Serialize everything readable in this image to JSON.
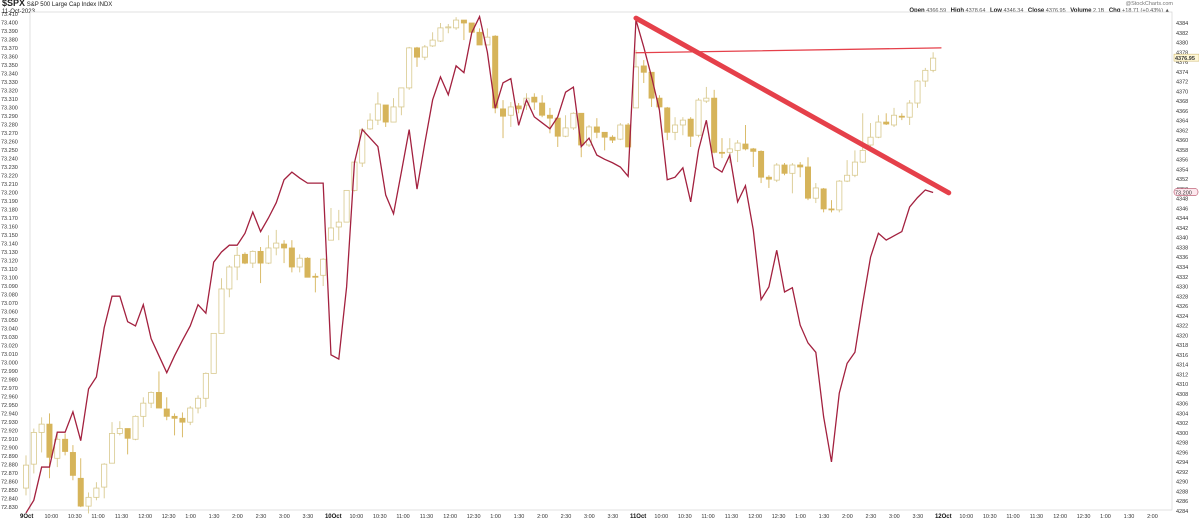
{
  "header": {
    "symbol": "$SPX",
    "name": "S&P 500 Large Cap Index",
    "exchange": "INDX",
    "date": "11-Oct-2023",
    "watermark": "@StockCharts.com",
    "ohlc": [
      {
        "label": "Open",
        "value": "4366.59"
      },
      {
        "label": "High",
        "value": "4378.64"
      },
      {
        "label": "Low",
        "value": "4346.34"
      },
      {
        "label": "Close",
        "value": "4376.95"
      },
      {
        "label": "Volume",
        "value": "2.1B"
      },
      {
        "label": "Chg",
        "value": "+18.71 (+0.43%) ▲"
      }
    ]
  },
  "chart_data": {
    "type": "candlestick",
    "interval": "10 minutes",
    "colors": {
      "down_fill": "#d6b45a",
      "up_stroke": "#d8c98e",
      "overlay_line": "#a3213f",
      "trendline": "#e5404a"
    },
    "x_axis": {
      "days": [
        "9Oct",
        "10Oct",
        "11Oct",
        "12Oct"
      ],
      "times": [
        "10:00",
        "10:30",
        "11:00",
        "11:30",
        "12:00",
        "12:30",
        "1:00",
        "1:30",
        "2:00",
        "2:30",
        "3:00",
        "3:30"
      ],
      "last_day_times": [
        "10:00",
        "10:30",
        "11:00",
        "11:30",
        "12:00",
        "12:30",
        "1:00",
        "1:30",
        "2:00"
      ]
    },
    "right_axis": {
      "min": 4284,
      "max": 4384,
      "step": 2,
      "last_value_tag": "4376.95"
    },
    "left_axis": {
      "min": 72.83,
      "max": 73.41,
      "step": 0.01,
      "last_value_tag": "73.200"
    },
    "grid": false,
    "candles_ohlc": [
      [
        [
          4288.7,
          4295.4,
          4287.2,
          4293.4
        ],
        [
          4293.6,
          4300.9,
          4291.7,
          4300.1
        ],
        [
          4300.1,
          4303.2,
          4296.0,
          4301.8
        ],
        [
          4301.8,
          4304.0,
          4290.7,
          4295.0
        ],
        [
          4294.8,
          4299.9,
          4293.0,
          4298.7
        ],
        [
          4298.7,
          4299.9,
          4295.4,
          4296.2
        ],
        [
          4296.0,
          4297.5,
          4290.3,
          4291.3
        ],
        [
          4290.7,
          4294.8,
          4284.8,
          4285.0
        ],
        [
          4285.0,
          4287.8,
          4283.5,
          4286.8
        ],
        [
          4286.8,
          4289.9,
          4286.2,
          4288.7
        ],
        [
          4288.9,
          4293.8,
          4286.6,
          4293.6
        ],
        [
          4293.8,
          4302.2,
          4293.8,
          4299.9
        ],
        [
          4299.9,
          4302.4,
          4299.5,
          4300.9
        ],
        [
          4300.9,
          4300.9,
          4295.6,
          4298.9
        ],
        [
          4298.7,
          4303.6,
          4298.5,
          4303.4
        ],
        [
          4303.4,
          4307.3,
          4301.2,
          4306.1
        ],
        [
          4306.1,
          4308.5,
          4305.1,
          4308.3
        ],
        [
          4308.3,
          4312.6,
          4305.1,
          4305.1
        ],
        [
          4304.9,
          4307.3,
          4302.6,
          4303.4
        ],
        [
          4303.4,
          4304.0,
          4299.5,
          4303.0
        ],
        [
          4303.0,
          4304.2,
          4299.1,
          4302.2
        ],
        [
          4302.2,
          4305.5,
          4301.6,
          4305.1
        ],
        [
          4305.1,
          4307.7,
          4304.0,
          4307.1
        ],
        [
          4307.1,
          4312.4,
          4305.3,
          4312.2
        ],
        [
          4312.2,
          4320.4,
          4312.2,
          4320.4
        ],
        [
          4320.4,
          4331.7,
          4320.4,
          4329.5
        ],
        [
          4329.5,
          4334.4,
          4327.8,
          4334.0
        ],
        [
          4334.0,
          4338.1,
          4331.3,
          4336.4
        ],
        [
          4336.6,
          4337.0,
          4334.6,
          4334.8
        ],
        [
          4334.8,
          4337.4,
          4333.8,
          4337.2
        ],
        [
          4337.2,
          4338.1,
          4330.7,
          4334.8
        ],
        [
          4334.8,
          4340.5,
          4334.6,
          4337.9
        ],
        [
          4337.9,
          4341.6,
          4336.4,
          4338.9
        ],
        [
          4338.7,
          4339.5,
          4334.8,
          4337.9
        ],
        [
          4337.9,
          4339.5,
          4332.9,
          4334.0
        ],
        [
          4334.0,
          4336.6,
          4332.9,
          4335.8
        ],
        [
          4335.8,
          4336.0,
          4331.9,
          4331.9
        ],
        [
          4332.1,
          4332.7,
          4328.8,
          4331.9
        ],
        [
          4332.3,
          4335.8,
          4330.1,
          4335.6
        ]
      ],
      [
        [
          4339.5,
          4346.1,
          4339.5,
          4342.0
        ],
        [
          4342.2,
          4345.7,
          4339.5,
          4343.2
        ],
        [
          4343.2,
          4349.7,
          4343.2,
          4349.7
        ],
        [
          4349.7,
          4355.7,
          4349.5,
          4355.5
        ],
        [
          4355.3,
          4362.5,
          4354.5,
          4362.1
        ],
        [
          4362.3,
          4365.5,
          4362.1,
          4364.1
        ],
        [
          4364.1,
          4369.8,
          4363.1,
          4367.4
        ],
        [
          4367.2,
          4367.2,
          4362.7,
          4363.7
        ],
        [
          4363.7,
          4368.6,
          4363.7,
          4366.8
        ],
        [
          4366.8,
          4370.7,
          4365.1,
          4370.7
        ],
        [
          4370.7,
          4379.1,
          4370.3,
          4378.9
        ],
        [
          4378.9,
          4379.1,
          4375.0,
          4377.0
        ],
        [
          4377.0,
          4379.5,
          4376.4,
          4379.1
        ],
        [
          4379.3,
          4382.1,
          4379.1,
          4380.5
        ],
        [
          4380.3,
          4384.0,
          4380.1,
          4383.0
        ],
        [
          4383.0,
          4383.8,
          4381.9,
          4383.2
        ],
        [
          4383.0,
          4385.2,
          4382.6,
          4384.6
        ],
        [
          4384.6,
          4384.6,
          4380.5,
          4384.0
        ],
        [
          4384.0,
          4384.0,
          4381.9,
          4382.1
        ],
        [
          4382.1,
          4382.9,
          4379.5,
          4379.5
        ],
        [
          4379.5,
          4382.9,
          4379.5,
          4381.1
        ],
        [
          4381.3,
          4381.5,
          4365.5,
          4366.6
        ],
        [
          4366.4,
          4368.2,
          4360.4,
          4364.9
        ],
        [
          4365.1,
          4367.8,
          4362.7,
          4366.8
        ],
        [
          4367.0,
          4367.6,
          4365.5,
          4366.4
        ],
        [
          4367.2,
          4369.6,
          4366.2,
          4368.6
        ],
        [
          4368.8,
          4369.6,
          4366.2,
          4367.8
        ],
        [
          4367.6,
          4369.2,
          4364.7,
          4365.1
        ],
        [
          4365.1,
          4366.6,
          4361.4,
          4364.5
        ],
        [
          4364.5,
          4364.5,
          4358.6,
          4360.8
        ],
        [
          4360.8,
          4365.1,
          4360.6,
          4362.5
        ],
        [
          4362.5,
          4365.7,
          4362.1,
          4365.5
        ],
        [
          4365.5,
          4365.5,
          4356.5,
          4359.0
        ],
        [
          4359.0,
          4363.1,
          4358.6,
          4362.7
        ],
        [
          4362.7,
          4364.5,
          4360.4,
          4361.6
        ],
        [
          4361.6,
          4361.6,
          4357.9,
          4360.6
        ],
        [
          4360.6,
          4361.0,
          4359.4,
          4360.0
        ],
        [
          4360.2,
          4363.5,
          4360.0,
          4363.1
        ],
        [
          4363.1,
          4363.5,
          4358.6,
          4358.6
        ]
      ],
      [
        [
          4366.6,
          4378.5,
          4366.6,
          4375.0
        ],
        [
          4375.2,
          4376.4,
          4371.7,
          4373.9
        ],
        [
          4373.9,
          4373.9,
          4366.8,
          4368.6
        ],
        [
          4368.6,
          4369.2,
          4366.2,
          4366.8
        ],
        [
          4366.6,
          4366.8,
          4360.0,
          4361.6
        ],
        [
          4361.6,
          4364.7,
          4360.0,
          4363.1
        ],
        [
          4363.1,
          4364.7,
          4361.0,
          4364.1
        ],
        [
          4364.3,
          4364.7,
          4358.6,
          4360.8
        ],
        [
          4361.0,
          4368.6,
          4360.6,
          4368.2
        ],
        [
          4368.0,
          4370.9,
          4367.6,
          4368.6
        ],
        [
          4368.6,
          4370.3,
          4357.3,
          4357.5
        ],
        [
          4357.5,
          4360.4,
          4356.3,
          4357.3
        ],
        [
          4357.5,
          4360.4,
          4355.3,
          4358.2
        ],
        [
          4357.9,
          4360.0,
          4355.5,
          4359.4
        ],
        [
          4359.2,
          4363.1,
          4357.9,
          4358.2
        ],
        [
          4358.2,
          4358.4,
          4354.5,
          4357.7
        ],
        [
          4357.7,
          4357.9,
          4351.2,
          4352.4
        ],
        [
          4352.4,
          4352.8,
          4350.2,
          4352.0
        ],
        [
          4351.8,
          4355.3,
          4351.4,
          4354.9
        ],
        [
          4354.9,
          4355.3,
          4352.8,
          4353.2
        ],
        [
          4353.2,
          4355.3,
          4349.1,
          4354.9
        ],
        [
          4354.9,
          4355.5,
          4352.4,
          4354.5
        ],
        [
          4354.5,
          4356.5,
          4347.7,
          4348.1
        ],
        [
          4348.1,
          4351.2,
          4347.1,
          4350.2
        ],
        [
          4350.0,
          4350.2,
          4345.2,
          4345.9
        ],
        [
          4345.9,
          4347.7,
          4345.2,
          4345.7
        ],
        [
          4345.7,
          4351.8,
          4345.2,
          4351.6
        ],
        [
          4351.6,
          4355.9,
          4351.4,
          4352.8
        ],
        [
          4352.8,
          4357.9,
          4352.4,
          4355.5
        ],
        [
          4355.5,
          4365.5,
          4355.3,
          4357.9
        ],
        [
          4359.0,
          4363.5,
          4358.6,
          4360.6
        ],
        [
          4360.6,
          4365.1,
          4360.4,
          4363.7
        ],
        [
          4363.7,
          4365.5,
          4363.1,
          4363.3
        ],
        [
          4363.1,
          4366.6,
          4362.7,
          4365.1
        ],
        [
          4364.9,
          4365.5,
          4364.1,
          4364.7
        ],
        [
          4364.7,
          4368.2,
          4363.1,
          4367.6
        ],
        [
          4367.6,
          4372.3,
          4366.6,
          4372.1
        ],
        [
          4372.1,
          4374.8,
          4370.9,
          4374.3
        ],
        [
          4374.3,
          4378.0,
          4373.9,
          4376.8
        ]
      ]
    ],
    "overlay_line_left_axis": [
      [
        72.823,
        72.838,
        72.877,
        72.877,
        72.918,
        72.918,
        72.942,
        72.908,
        72.969,
        72.983,
        73.041,
        73.078,
        73.078,
        73.048,
        73.043,
        73.068,
        73.028,
        73.008,
        72.988,
        73.008,
        73.026,
        73.043,
        73.068,
        73.058,
        73.118,
        73.13,
        73.138,
        73.138,
        73.152,
        73.177,
        73.154,
        73.17,
        73.188,
        73.215,
        73.224,
        73.217,
        73.211,
        73.211,
        73.211
      ],
      [
        73.009,
        73.004,
        73.089,
        73.235,
        73.274,
        73.264,
        73.254,
        73.197,
        73.175,
        73.224,
        73.274,
        73.204,
        73.258,
        73.309,
        73.336,
        73.315,
        73.349,
        73.341,
        73.388,
        73.407,
        73.365,
        73.299,
        73.329,
        73.334,
        73.279,
        73.309,
        73.289,
        73.282,
        73.275,
        73.289,
        73.318,
        73.324,
        73.254,
        73.264,
        73.244,
        73.239,
        73.235,
        73.23,
        73.219
      ],
      [
        73.403,
        73.371,
        73.336,
        73.297,
        73.215,
        73.218,
        73.229,
        73.189,
        73.25,
        73.285,
        73.23,
        73.224,
        73.244,
        73.189,
        73.208,
        73.156,
        73.074,
        73.089,
        73.132,
        73.083,
        73.088,
        73.044,
        73.023,
        73.012,
        72.936,
        72.883,
        72.964,
        72.999,
        73.012,
        73.07,
        73.124,
        73.152,
        73.144,
        73.149,
        73.154,
        73.183,
        73.194,
        73.203,
        73.2
      ]
    ],
    "trendlines": [
      {
        "kind": "descending",
        "from": {
          "day": "11Oct",
          "bar": 0,
          "value": 4385.0
        },
        "to": {
          "day": "11Oct",
          "bar": 40,
          "value": 4349.2
        }
      },
      {
        "kind": "horizontal",
        "from": {
          "day": "11Oct",
          "bar": 0,
          "value": 4377.9
        },
        "to": {
          "day": "11Oct",
          "bar": 39,
          "value": 4378.9
        }
      }
    ]
  }
}
